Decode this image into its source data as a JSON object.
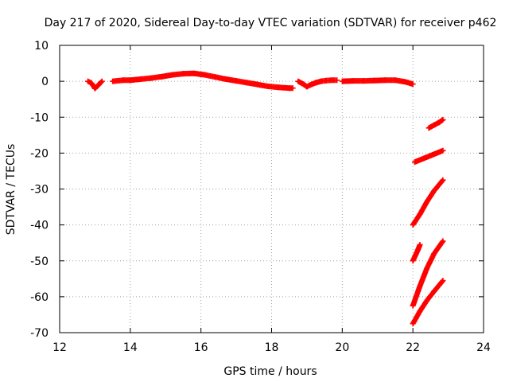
{
  "chart_data": {
    "type": "scatter",
    "title": "Day 217 of 2020, Sidereal Day-to-day VTEC variation (SDTVAR) for receiver p462",
    "xlabel": "GPS time / hours",
    "ylabel": "SDTVAR / TECUs",
    "xlim": [
      12,
      24
    ],
    "ylim": [
      -70,
      10
    ],
    "xticks": [
      12,
      14,
      16,
      18,
      20,
      22,
      24
    ],
    "yticks": [
      -70,
      -60,
      -50,
      -40,
      -30,
      -20,
      -10,
      0,
      10
    ],
    "x_tick_labels": [
      "12",
      "14",
      "16",
      "18",
      "20",
      "22",
      "24"
    ],
    "y_tick_labels": [
      "-70",
      "-60",
      "-50",
      "-40",
      "-30",
      "-20",
      "-10",
      "0",
      "10"
    ],
    "grid": true,
    "marker": "plus",
    "series": [
      {
        "color": "#ff0000",
        "segments": [
          {
            "x": [
              12.8,
              12.9,
              13.0,
              13.1,
              13.2
            ],
            "y": [
              0.0,
              -0.5,
              -2.0,
              -1.0,
              0.0
            ]
          },
          {
            "x": [
              13.5,
              13.8,
              14.0,
              14.3,
              14.6,
              14.9,
              15.2,
              15.5,
              15.8,
              16.1,
              16.4,
              16.7,
              17.0,
              17.3,
              17.6,
              17.9,
              18.2,
              18.5,
              18.6
            ],
            "y": [
              0.0,
              0.3,
              0.3,
              0.6,
              0.9,
              1.3,
              1.8,
              2.1,
              2.2,
              1.8,
              1.2,
              0.6,
              0.1,
              -0.4,
              -0.9,
              -1.4,
              -1.7,
              -1.9,
              -1.9
            ]
          },
          {
            "x": [
              18.75,
              18.9,
              19.0,
              19.1,
              19.25,
              19.4,
              19.55,
              19.7,
              19.85
            ],
            "y": [
              0.0,
              -0.8,
              -1.5,
              -1.0,
              -0.4,
              0.0,
              0.2,
              0.3,
              0.3
            ]
          },
          {
            "x": [
              20.0,
              20.3,
              20.6,
              20.9,
              21.2,
              21.5,
              21.8,
              22.0
            ],
            "y": [
              0.0,
              0.1,
              0.1,
              0.2,
              0.3,
              0.3,
              -0.2,
              -0.8
            ]
          },
          {
            "x": [
              22.45,
              22.6,
              22.75,
              22.85
            ],
            "y": [
              -13.0,
              -12.2,
              -11.4,
              -10.7
            ]
          },
          {
            "x": [
              22.05,
              22.3,
              22.55,
              22.85
            ],
            "y": [
              -22.5,
              -21.5,
              -20.5,
              -19.3
            ]
          },
          {
            "x": [
              22.0,
              22.2,
              22.4,
              22.6,
              22.85
            ],
            "y": [
              -40.0,
              -37.0,
              -33.5,
              -30.5,
              -27.5
            ]
          },
          {
            "x": [
              22.0,
              22.07,
              22.14,
              22.2
            ],
            "y": [
              -50.0,
              -48.5,
              -47.0,
              -45.5
            ]
          },
          {
            "x": [
              22.0,
              22.2,
              22.4,
              22.6,
              22.85
            ],
            "y": [
              -62.5,
              -57.0,
              -52.0,
              -48.0,
              -44.5
            ]
          },
          {
            "x": [
              22.0,
              22.2,
              22.4,
              22.6,
              22.85
            ],
            "y": [
              -67.5,
              -64.0,
              -61.0,
              -58.5,
              -55.5
            ]
          }
        ]
      }
    ]
  }
}
